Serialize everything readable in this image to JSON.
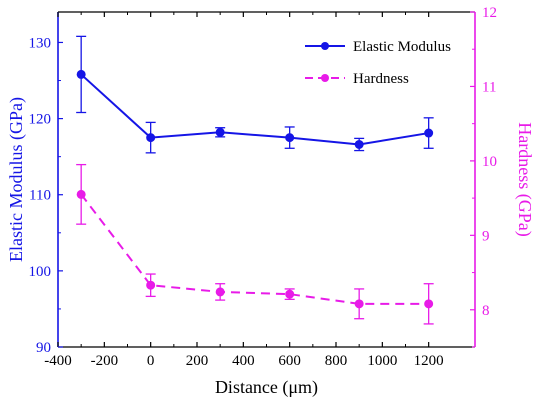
{
  "chart_data": {
    "type": "line",
    "x": [
      -300,
      0,
      300,
      600,
      900,
      1200
    ],
    "xlabel": "Distance (μm)",
    "xlim": [
      -400,
      1400
    ],
    "xticks": [
      -400,
      -200,
      0,
      200,
      400,
      600,
      800,
      1000,
      1200
    ],
    "ylabel_left": "Elastic Modulus (GPa)",
    "ylim_left": [
      90,
      134
    ],
    "yticks_left": [
      90,
      100,
      110,
      120,
      130
    ],
    "ylabel_right": "Hardness (GPa)",
    "ylim_right": [
      7.5,
      12
    ],
    "yticks_right": [
      8,
      9,
      10,
      11,
      12
    ],
    "grid": false,
    "legend_position": "top-right",
    "series": [
      {
        "name": "Elastic Modulus",
        "axis": "left",
        "color": "#1515e6",
        "line_style": "solid",
        "values": [
          125.8,
          117.5,
          118.2,
          117.5,
          116.6,
          118.1
        ],
        "errors": [
          5.0,
          2.0,
          0.6,
          1.4,
          0.8,
          2.0
        ]
      },
      {
        "name": "Hardness",
        "axis": "right",
        "color": "#e81be8",
        "line_style": "dashed",
        "values": [
          9.55,
          8.33,
          8.24,
          8.21,
          8.08,
          8.08
        ],
        "errors": [
          0.4,
          0.15,
          0.11,
          0.07,
          0.2,
          0.27
        ]
      }
    ]
  }
}
